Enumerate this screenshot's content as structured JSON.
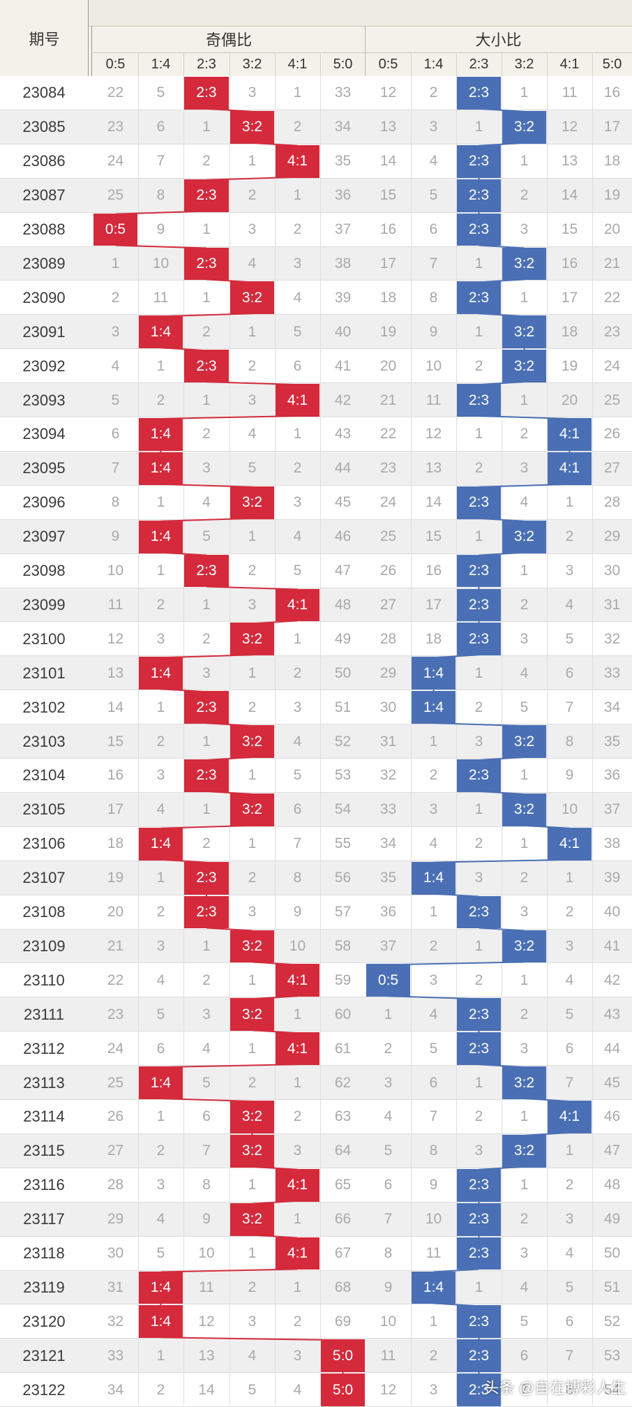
{
  "headers": {
    "period": "期号",
    "odd_even": "奇偶比",
    "big_small": "大小比",
    "ratios": [
      "0:5",
      "1:4",
      "2:3",
      "3:2",
      "4:1",
      "5:0"
    ]
  },
  "colors": {
    "odd_even": "#d42a3c",
    "big_small": "#4a6fb5"
  },
  "rows": [
    {
      "p": "23084",
      "oe": [
        "22",
        "5",
        "2:3",
        "3",
        "1",
        "33"
      ],
      "bs": [
        "12",
        "2",
        "2:3",
        "1",
        "11",
        "16"
      ]
    },
    {
      "p": "23085",
      "oe": [
        "23",
        "6",
        "1",
        "3:2",
        "2",
        "34"
      ],
      "bs": [
        "13",
        "3",
        "1",
        "3:2",
        "12",
        "17"
      ]
    },
    {
      "p": "23086",
      "oe": [
        "24",
        "7",
        "2",
        "1",
        "4:1",
        "35"
      ],
      "bs": [
        "14",
        "4",
        "2:3",
        "1",
        "13",
        "18"
      ]
    },
    {
      "p": "23087",
      "oe": [
        "25",
        "8",
        "2:3",
        "2",
        "1",
        "36"
      ],
      "bs": [
        "15",
        "5",
        "2:3",
        "2",
        "14",
        "19"
      ]
    },
    {
      "p": "23088",
      "oe": [
        "0:5",
        "9",
        "1",
        "3",
        "2",
        "37"
      ],
      "bs": [
        "16",
        "6",
        "2:3",
        "3",
        "15",
        "20"
      ]
    },
    {
      "p": "23089",
      "oe": [
        "1",
        "10",
        "2:3",
        "4",
        "3",
        "38"
      ],
      "bs": [
        "17",
        "7",
        "1",
        "3:2",
        "16",
        "21"
      ]
    },
    {
      "p": "23090",
      "oe": [
        "2",
        "11",
        "1",
        "3:2",
        "4",
        "39"
      ],
      "bs": [
        "18",
        "8",
        "2:3",
        "1",
        "17",
        "22"
      ]
    },
    {
      "p": "23091",
      "oe": [
        "3",
        "1:4",
        "2",
        "1",
        "5",
        "40"
      ],
      "bs": [
        "19",
        "9",
        "1",
        "3:2",
        "18",
        "23"
      ]
    },
    {
      "p": "23092",
      "oe": [
        "4",
        "1",
        "2:3",
        "2",
        "6",
        "41"
      ],
      "bs": [
        "20",
        "10",
        "2",
        "3:2",
        "19",
        "24"
      ]
    },
    {
      "p": "23093",
      "oe": [
        "5",
        "2",
        "1",
        "3",
        "4:1",
        "42"
      ],
      "bs": [
        "21",
        "11",
        "2:3",
        "1",
        "20",
        "25"
      ]
    },
    {
      "p": "23094",
      "oe": [
        "6",
        "1:4",
        "2",
        "4",
        "1",
        "43"
      ],
      "bs": [
        "22",
        "12",
        "1",
        "2",
        "4:1",
        "26"
      ]
    },
    {
      "p": "23095",
      "oe": [
        "7",
        "1:4",
        "3",
        "5",
        "2",
        "44"
      ],
      "bs": [
        "23",
        "13",
        "2",
        "3",
        "4:1",
        "27"
      ]
    },
    {
      "p": "23096",
      "oe": [
        "8",
        "1",
        "4",
        "3:2",
        "3",
        "45"
      ],
      "bs": [
        "24",
        "14",
        "2:3",
        "4",
        "1",
        "28"
      ]
    },
    {
      "p": "23097",
      "oe": [
        "9",
        "1:4",
        "5",
        "1",
        "4",
        "46"
      ],
      "bs": [
        "25",
        "15",
        "1",
        "3:2",
        "2",
        "29"
      ]
    },
    {
      "p": "23098",
      "oe": [
        "10",
        "1",
        "2:3",
        "2",
        "5",
        "47"
      ],
      "bs": [
        "26",
        "16",
        "2:3",
        "1",
        "3",
        "30"
      ]
    },
    {
      "p": "23099",
      "oe": [
        "11",
        "2",
        "1",
        "3",
        "4:1",
        "48"
      ],
      "bs": [
        "27",
        "17",
        "2:3",
        "2",
        "4",
        "31"
      ]
    },
    {
      "p": "23100",
      "oe": [
        "12",
        "3",
        "2",
        "3:2",
        "1",
        "49"
      ],
      "bs": [
        "28",
        "18",
        "2:3",
        "3",
        "5",
        "32"
      ]
    },
    {
      "p": "23101",
      "oe": [
        "13",
        "1:4",
        "3",
        "1",
        "2",
        "50"
      ],
      "bs": [
        "29",
        "1:4",
        "1",
        "4",
        "6",
        "33"
      ]
    },
    {
      "p": "23102",
      "oe": [
        "14",
        "1",
        "2:3",
        "2",
        "3",
        "51"
      ],
      "bs": [
        "30",
        "1:4",
        "2",
        "5",
        "7",
        "34"
      ]
    },
    {
      "p": "23103",
      "oe": [
        "15",
        "2",
        "1",
        "3:2",
        "4",
        "52"
      ],
      "bs": [
        "31",
        "1",
        "3",
        "3:2",
        "8",
        "35"
      ]
    },
    {
      "p": "23104",
      "oe": [
        "16",
        "3",
        "2:3",
        "1",
        "5",
        "53"
      ],
      "bs": [
        "32",
        "2",
        "2:3",
        "1",
        "9",
        "36"
      ]
    },
    {
      "p": "23105",
      "oe": [
        "17",
        "4",
        "1",
        "3:2",
        "6",
        "54"
      ],
      "bs": [
        "33",
        "3",
        "1",
        "3:2",
        "10",
        "37"
      ]
    },
    {
      "p": "23106",
      "oe": [
        "18",
        "1:4",
        "2",
        "1",
        "7",
        "55"
      ],
      "bs": [
        "34",
        "4",
        "2",
        "1",
        "4:1",
        "38"
      ]
    },
    {
      "p": "23107",
      "oe": [
        "19",
        "1",
        "2:3",
        "2",
        "8",
        "56"
      ],
      "bs": [
        "35",
        "1:4",
        "3",
        "2",
        "1",
        "39"
      ]
    },
    {
      "p": "23108",
      "oe": [
        "20",
        "2",
        "2:3",
        "3",
        "9",
        "57"
      ],
      "bs": [
        "36",
        "1",
        "2:3",
        "3",
        "2",
        "40"
      ]
    },
    {
      "p": "23109",
      "oe": [
        "21",
        "3",
        "1",
        "3:2",
        "10",
        "58"
      ],
      "bs": [
        "37",
        "2",
        "1",
        "3:2",
        "3",
        "41"
      ]
    },
    {
      "p": "23110",
      "oe": [
        "22",
        "4",
        "2",
        "1",
        "4:1",
        "59"
      ],
      "bs": [
        "0:5",
        "3",
        "2",
        "1",
        "4",
        "42"
      ]
    },
    {
      "p": "23111",
      "oe": [
        "23",
        "5",
        "3",
        "3:2",
        "1",
        "60"
      ],
      "bs": [
        "1",
        "4",
        "2:3",
        "2",
        "5",
        "43"
      ]
    },
    {
      "p": "23112",
      "oe": [
        "24",
        "6",
        "4",
        "1",
        "4:1",
        "61"
      ],
      "bs": [
        "2",
        "5",
        "2:3",
        "3",
        "6",
        "44"
      ]
    },
    {
      "p": "23113",
      "oe": [
        "25",
        "1:4",
        "5",
        "2",
        "1",
        "62"
      ],
      "bs": [
        "3",
        "6",
        "1",
        "3:2",
        "7",
        "45"
      ]
    },
    {
      "p": "23114",
      "oe": [
        "26",
        "1",
        "6",
        "3:2",
        "2",
        "63"
      ],
      "bs": [
        "4",
        "7",
        "2",
        "1",
        "4:1",
        "46"
      ]
    },
    {
      "p": "23115",
      "oe": [
        "27",
        "2",
        "7",
        "3:2",
        "3",
        "64"
      ],
      "bs": [
        "5",
        "8",
        "3",
        "3:2",
        "1",
        "47"
      ]
    },
    {
      "p": "23116",
      "oe": [
        "28",
        "3",
        "8",
        "1",
        "4:1",
        "65"
      ],
      "bs": [
        "6",
        "9",
        "2:3",
        "1",
        "2",
        "48"
      ]
    },
    {
      "p": "23117",
      "oe": [
        "29",
        "4",
        "9",
        "3:2",
        "1",
        "66"
      ],
      "bs": [
        "7",
        "10",
        "2:3",
        "2",
        "3",
        "49"
      ]
    },
    {
      "p": "23118",
      "oe": [
        "30",
        "5",
        "10",
        "1",
        "4:1",
        "67"
      ],
      "bs": [
        "8",
        "11",
        "2:3",
        "3",
        "4",
        "50"
      ]
    },
    {
      "p": "23119",
      "oe": [
        "31",
        "1:4",
        "11",
        "2",
        "1",
        "68"
      ],
      "bs": [
        "9",
        "1:4",
        "1",
        "4",
        "5",
        "51"
      ]
    },
    {
      "p": "23120",
      "oe": [
        "32",
        "1:4",
        "12",
        "3",
        "2",
        "69"
      ],
      "bs": [
        "10",
        "1",
        "2:3",
        "5",
        "6",
        "52"
      ]
    },
    {
      "p": "23121",
      "oe": [
        "33",
        "1",
        "13",
        "4",
        "3",
        "5:0"
      ],
      "bs": [
        "11",
        "2",
        "2:3",
        "6",
        "7",
        "53"
      ]
    },
    {
      "p": "23122",
      "oe": [
        "34",
        "2",
        "14",
        "5",
        "4",
        "5:0"
      ],
      "bs": [
        "12",
        "3",
        "2:3",
        "7",
        "8",
        "54"
      ]
    }
  ],
  "watermark": "头条 @自在博彩人生"
}
